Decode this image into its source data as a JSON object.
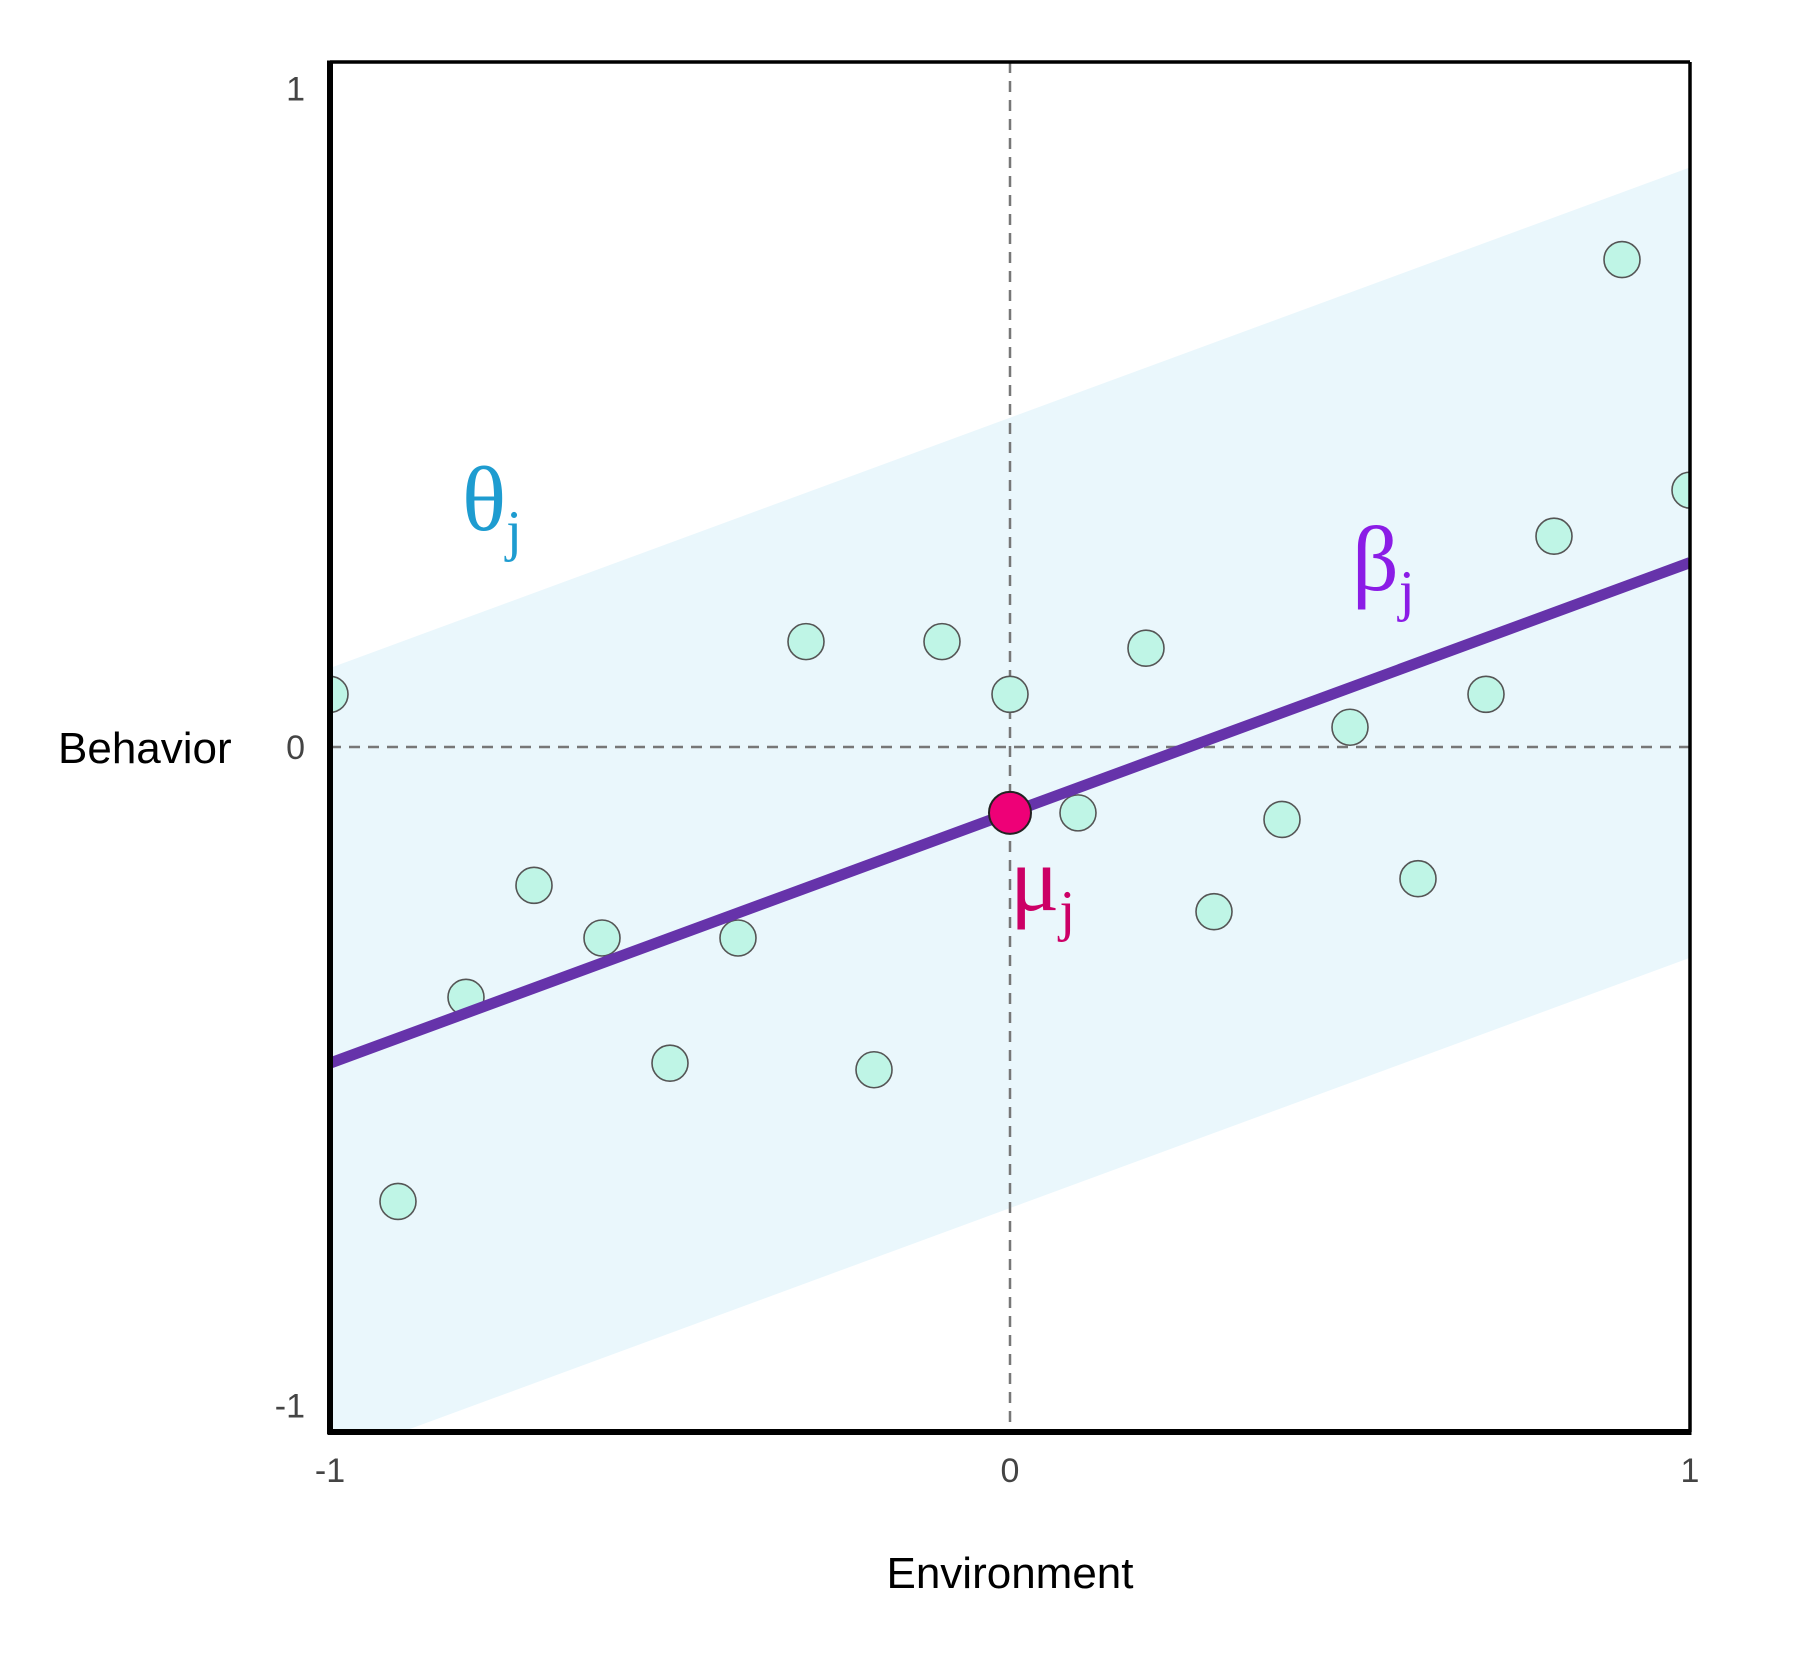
{
  "chart_data": {
    "type": "scatter",
    "xlabel": "Environment",
    "ylabel": "Behavior",
    "xlim": [
      -1,
      1
    ],
    "ylim": [
      -1.04,
      1.04
    ],
    "x_ticks": [
      "-1",
      "0",
      "1"
    ],
    "y_ticks": [
      "1",
      "0",
      "-1"
    ],
    "points": [
      {
        "x": -1.0,
        "y": 0.08
      },
      {
        "x": -0.9,
        "y": -0.69
      },
      {
        "x": -0.8,
        "y": -0.38
      },
      {
        "x": -0.7,
        "y": -0.21
      },
      {
        "x": -0.6,
        "y": -0.29
      },
      {
        "x": -0.5,
        "y": -0.48
      },
      {
        "x": -0.4,
        "y": -0.29
      },
      {
        "x": -0.3,
        "y": 0.16
      },
      {
        "x": -0.2,
        "y": -0.49
      },
      {
        "x": -0.1,
        "y": 0.16
      },
      {
        "x": 0.0,
        "y": 0.08
      },
      {
        "x": 0.1,
        "y": -0.1
      },
      {
        "x": 0.2,
        "y": 0.15
      },
      {
        "x": 0.3,
        "y": -0.25
      },
      {
        "x": 0.4,
        "y": -0.11
      },
      {
        "x": 0.5,
        "y": 0.03
      },
      {
        "x": 0.6,
        "y": -0.2
      },
      {
        "x": 0.7,
        "y": 0.08
      },
      {
        "x": 0.8,
        "y": 0.32
      },
      {
        "x": 0.9,
        "y": 0.74
      },
      {
        "x": 1.0,
        "y": 0.39
      }
    ],
    "regression_line": {
      "intercept": -0.1,
      "slope": 0.38,
      "label_symbol": "β",
      "label_subscript": "j",
      "color": "#6633aa",
      "label_color": "#8b1ce6"
    },
    "band": {
      "half_width": 0.6,
      "label_symbol": "θ",
      "label_subscript": "j",
      "color": "#eaf7fc",
      "label_color": "#1e9cd0"
    },
    "intercept_point": {
      "x": 0,
      "y": -0.1,
      "label_symbol": "μ",
      "label_subscript": "j",
      "color": "#ee0077",
      "label_color": "#cc0066"
    },
    "point_fill": "#bff5e6",
    "reference_lines": {
      "x": 0,
      "y": 0,
      "style": "dashed"
    },
    "grid": false
  }
}
